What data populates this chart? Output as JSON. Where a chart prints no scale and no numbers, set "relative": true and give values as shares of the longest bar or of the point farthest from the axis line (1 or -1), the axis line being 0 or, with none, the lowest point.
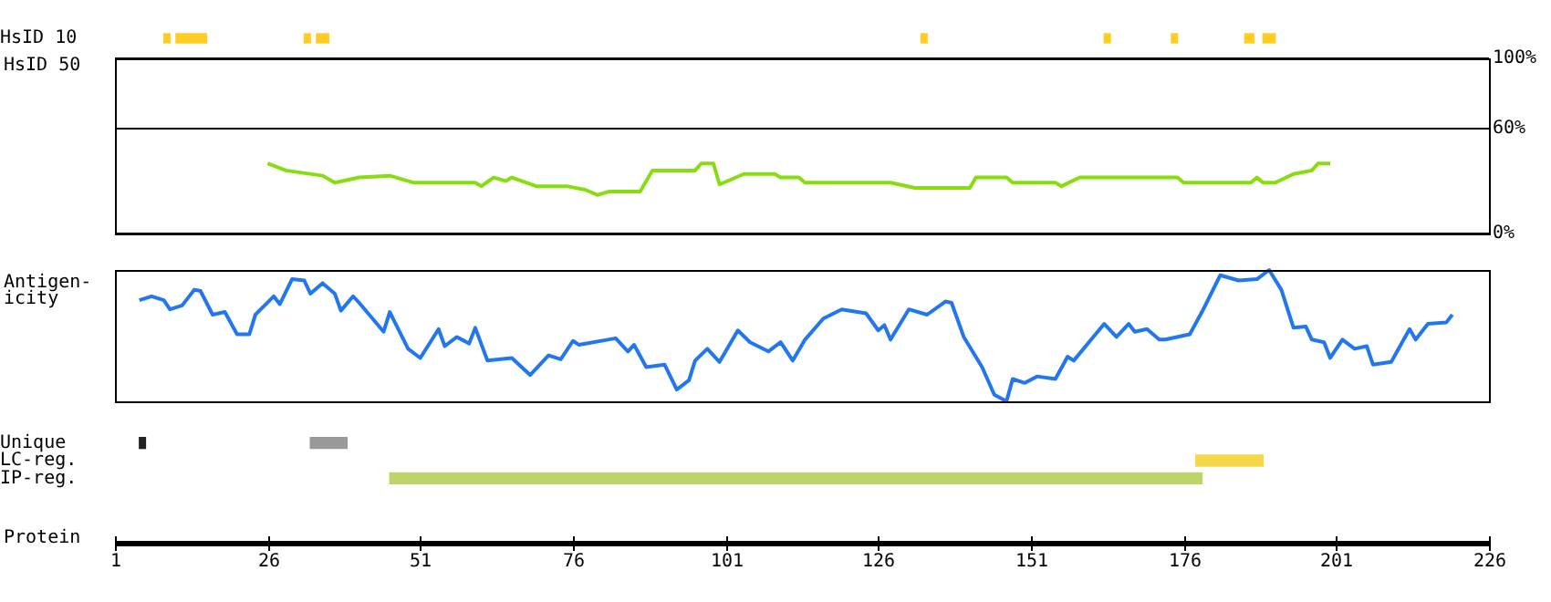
{
  "chart_data": [
    {
      "type": "bar",
      "orientation": "horizontal",
      "categories": [
        "HsID 10"
      ],
      "xlim": [
        1,
        226
      ],
      "tick_labels": "y",
      "series": [
        {
          "color": "#ffcc22",
          "values": [
            1
          ],
          "base": [
            9
          ]
        },
        {
          "color": "#ffcc22",
          "values": [
            5
          ],
          "base": [
            11
          ]
        },
        {
          "color": "#ffcc22",
          "values": [
            1
          ],
          "base": [
            32
          ]
        },
        {
          "color": "#ffcc22",
          "values": [
            2
          ],
          "base": [
            34
          ]
        },
        {
          "color": "#ffcc22",
          "values": [
            1
          ],
          "base": [
            133
          ]
        },
        {
          "color": "#ffcc22",
          "values": [
            1
          ],
          "base": [
            163
          ]
        },
        {
          "color": "#ffcc22",
          "values": [
            1
          ],
          "base": [
            174
          ]
        },
        {
          "color": "#ffcc22",
          "values": [
            1.5
          ],
          "base": [
            186
          ]
        },
        {
          "color": "#ffcc22",
          "values": [
            2
          ],
          "base": [
            189
          ]
        }
      ]
    },
    {
      "type": "line",
      "ylabel": "HsID 50",
      "xlim": [
        1,
        226
      ],
      "ylim": [
        0,
        100
      ],
      "yticks": [
        {
          "value": 0,
          "label": "0%"
        },
        {
          "value": 60,
          "label": "60%"
        },
        {
          "value": 100,
          "label": "100%"
        }
      ],
      "grid": "y",
      "tick_labels": "y",
      "series": [
        {
          "color": "#88dd11",
          "x": [
            26,
            29,
            35,
            37,
            41,
            46,
            50,
            60,
            61,
            63,
            65,
            66,
            70,
            75,
            78,
            80,
            82,
            87,
            89,
            96,
            97,
            99,
            100,
            104,
            109,
            110,
            113,
            114,
            128,
            132,
            141,
            142,
            147,
            148,
            155,
            156,
            159,
            175,
            176,
            187,
            188,
            189,
            191,
            194,
            197,
            198,
            200
          ],
          "values": [
            40,
            36,
            33,
            29,
            32,
            33,
            29,
            29,
            27,
            32,
            30,
            32,
            27,
            27,
            25,
            22,
            24,
            24,
            36,
            36,
            40,
            40,
            28,
            34,
            34,
            32,
            32,
            29,
            29,
            26,
            26,
            32,
            32,
            29,
            29,
            27,
            32,
            32,
            29,
            29,
            32,
            29,
            29,
            34,
            36,
            40,
            40
          ]
        }
      ]
    },
    {
      "type": "line",
      "ylabel": "Antigen-\nicity",
      "xlim": [
        1,
        226
      ],
      "relative": true,
      "tick_labels": false,
      "series": [
        {
          "color": "#2277ee",
          "x": [
            5,
            7,
            9,
            10,
            12,
            14,
            15,
            17,
            19,
            21,
            23,
            24,
            27,
            28,
            30,
            32,
            33,
            35,
            37,
            38,
            40,
            41,
            45,
            46,
            49,
            51,
            54,
            55,
            57,
            59,
            60,
            62,
            66,
            69,
            72,
            74,
            76,
            77,
            83,
            85,
            86,
            88,
            91,
            93,
            95,
            96,
            98,
            100,
            103,
            105,
            108,
            110,
            112,
            114,
            117,
            120,
            124,
            126,
            127,
            128,
            131,
            134,
            137,
            138,
            140,
            143,
            145,
            147,
            148,
            150,
            152,
            155,
            157,
            158,
            163,
            165,
            167,
            168,
            170,
            172,
            173,
            177,
            179,
            182,
            185,
            188,
            190,
            192,
            194,
            196,
            197,
            199,
            200,
            202,
            204,
            206,
            207,
            210,
            213,
            214,
            216,
            219,
            220
          ],
          "values": [
            0.77,
            0.8,
            0.77,
            0.7,
            0.73,
            0.85,
            0.84,
            0.66,
            0.68,
            0.51,
            0.51,
            0.66,
            0.8,
            0.74,
            0.93,
            0.92,
            0.82,
            0.9,
            0.82,
            0.69,
            0.8,
            0.75,
            0.53,
            0.68,
            0.4,
            0.33,
            0.55,
            0.42,
            0.49,
            0.44,
            0.56,
            0.31,
            0.33,
            0.2,
            0.35,
            0.32,
            0.46,
            0.43,
            0.48,
            0.38,
            0.43,
            0.26,
            0.28,
            0.09,
            0.16,
            0.31,
            0.4,
            0.3,
            0.54,
            0.45,
            0.38,
            0.45,
            0.31,
            0.47,
            0.63,
            0.7,
            0.67,
            0.54,
            0.58,
            0.47,
            0.7,
            0.66,
            0.76,
            0.75,
            0.49,
            0.26,
            0.05,
            0,
            0.17,
            0.14,
            0.19,
            0.17,
            0.34,
            0.31,
            0.59,
            0.49,
            0.59,
            0.53,
            0.55,
            0.47,
            0.47,
            0.51,
            0.68,
            0.96,
            0.92,
            0.93,
            1,
            0.85,
            0.56,
            0.57,
            0.47,
            0.45,
            0.33,
            0.47,
            0.4,
            0.42,
            0.28,
            0.3,
            0.55,
            0.47,
            0.59,
            0.6,
            0.66
          ]
        }
      ]
    },
    {
      "type": "bar",
      "orientation": "horizontal",
      "categories": [
        "Unique",
        "LC-reg.",
        "IP-reg."
      ],
      "xlabel": "Protein",
      "xlim": [
        1,
        226
      ],
      "xticks": [
        1,
        26,
        51,
        76,
        101,
        126,
        151,
        176,
        201,
        226
      ],
      "series": [
        {
          "colors": [
            "#222222",
            "#f5d848",
            "#bcd46a"
          ],
          "values": [
            1,
            11,
            133
          ],
          "base": [
            5,
            178,
            46
          ]
        },
        {
          "color": "#999999",
          "values": [
            6,
            null,
            null
          ],
          "base": [
            33,
            null,
            null
          ]
        }
      ]
    }
  ]
}
